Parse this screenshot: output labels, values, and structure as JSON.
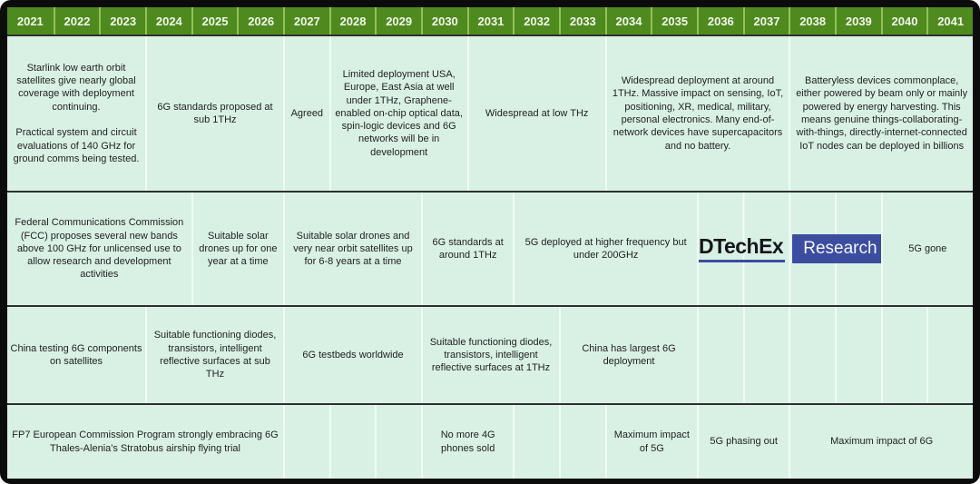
{
  "years": [
    "2021",
    "2022",
    "2023",
    "2024",
    "2025",
    "2026",
    "2027",
    "2028",
    "2029",
    "2030",
    "2031",
    "2032",
    "2033",
    "2034",
    "2035",
    "2036",
    "2037",
    "2038",
    "2039",
    "2040",
    "2041"
  ],
  "colors": {
    "frame_black": "#0c0c0c",
    "header_green": "#4e8a1e",
    "header_divider_green": "#92c257",
    "cell_mint": "#d9f1e5",
    "cell_divider": "#eefbf4",
    "row_divider": "#2f2f2f",
    "text": "#222222",
    "logo_blue": "#3c4da0"
  },
  "logo": {
    "brand": "IDTechEx",
    "label": "Research"
  },
  "rows": [
    {
      "name": "row-1-deployment",
      "cells": [
        {
          "span": 3,
          "text": "Starlink low earth orbit satellites give nearly global coverage with deployment continuing.\n\nPractical system and circuit evaluations of  140 GHz for ground comms being tested."
        },
        {
          "span": 3,
          "text": "6G standards proposed at sub 1THz"
        },
        {
          "span": 1,
          "text": "Agreed"
        },
        {
          "span": 3,
          "text": "Limited deployment USA, Europe, East Asia at well under 1THz, Graphene-enabled on-chip optical data, spin-logic devices and 6G networks will be in development"
        },
        {
          "span": 3,
          "text": "Widespread at low THz"
        },
        {
          "span": 4,
          "text": "Widespread deployment at around 1THz. Massive impact on sensing, IoT, positioning, XR, medical, military, personal electronics. Many end-of-network devices have supercapacitors and no battery."
        },
        {
          "span": 4,
          "text": "Batteryless devices commonplace, either powered by beam only or mainly powered by energy harvesting. This means genuine things-collaborating-with-things, directly-internet-connected IoT nodes can be deployed in billions"
        }
      ]
    },
    {
      "name": "row-2-spectrum",
      "cells": [
        {
          "span": 4,
          "text": "Federal Communications Commission  (FCC) proposes several new bands above 100 GHz for unlicensed use to allow research and development activities"
        },
        {
          "span": 2,
          "text": "Suitable solar drones up for one year at a time"
        },
        {
          "span": 3,
          "text": "Suitable solar drones and very near orbit satellites up for 6-8 years at a time"
        },
        {
          "span": 2,
          "text": "6G standards at around 1THz"
        },
        {
          "span": 4,
          "text": "5G deployed at higher frequency but under 200GHz"
        },
        {
          "span": 4,
          "text": "",
          "logo": true
        },
        {
          "span": 2,
          "text": "5G gone"
        }
      ]
    },
    {
      "name": "row-3-components",
      "cells": [
        {
          "span": 3,
          "text": "China testing 6G components on satellites"
        },
        {
          "span": 3,
          "text": "Suitable functioning diodes, transistors, intelligent reflective surfaces at sub THz"
        },
        {
          "span": 3,
          "text": "6G testbeds worldwide"
        },
        {
          "span": 3,
          "text": "Suitable functioning diodes, transistors, intelligent reflective surfaces at 1THz"
        },
        {
          "span": 3,
          "text": "China has largest 6G deployment"
        },
        {
          "span": 1,
          "text": ""
        },
        {
          "span": 1,
          "text": ""
        },
        {
          "span": 1,
          "text": ""
        },
        {
          "span": 1,
          "text": ""
        },
        {
          "span": 1,
          "text": ""
        },
        {
          "span": 1,
          "text": ""
        }
      ]
    },
    {
      "name": "row-4-milestones",
      "cells": [
        {
          "span": 6,
          "text": "FP7 European Commission Program strongly embracing 6G\nThales-Alenia's Stratobus airship flying trial"
        },
        {
          "span": 1,
          "text": ""
        },
        {
          "span": 1,
          "text": ""
        },
        {
          "span": 1,
          "text": ""
        },
        {
          "span": 2,
          "text": "No more 4G phones sold"
        },
        {
          "span": 1,
          "text": ""
        },
        {
          "span": 1,
          "text": ""
        },
        {
          "span": 2,
          "text": "Maximum impact of 5G"
        },
        {
          "span": 2,
          "text": "5G phasing out"
        },
        {
          "span": 4,
          "text": "Maximum impact of 6G"
        }
      ]
    }
  ]
}
